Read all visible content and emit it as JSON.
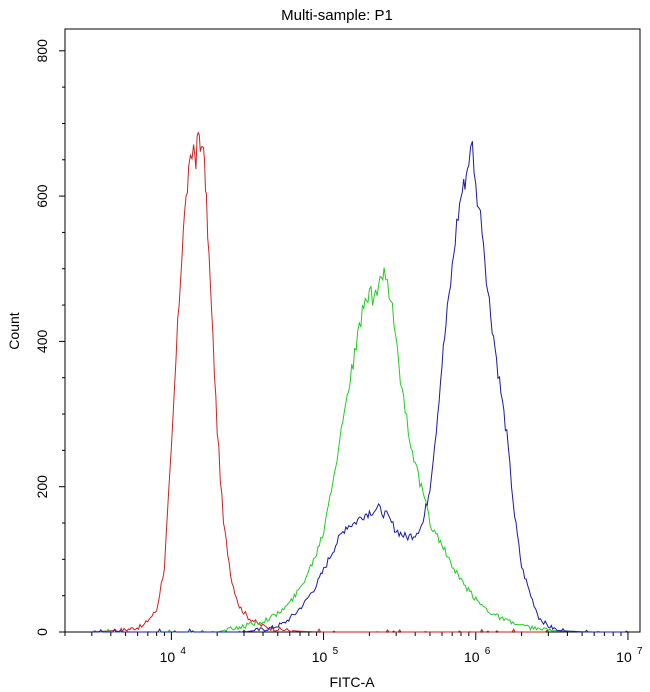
{
  "chart_data": {
    "type": "line",
    "title": "Multi-sample: P1",
    "xlabel": "FITC-A",
    "ylabel": "Count",
    "x_scale": "log",
    "xlim": [
      2000,
      12000000
    ],
    "ylim": [
      0,
      830
    ],
    "x_ticks": [
      {
        "value": 10000,
        "base": "10",
        "exp": "4"
      },
      {
        "value": 100000,
        "base": "10",
        "exp": "5"
      },
      {
        "value": 1000000,
        "base": "10",
        "exp": "6"
      },
      {
        "value": 10000000,
        "base": "10",
        "exp": "7"
      }
    ],
    "y_ticks": [
      {
        "value": 0,
        "label": "0"
      },
      {
        "value": 200,
        "label": "200"
      },
      {
        "value": 400,
        "label": "400"
      },
      {
        "value": 600,
        "label": "600"
      },
      {
        "value": 800,
        "label": "800"
      }
    ],
    "grid": false,
    "legend": "none",
    "series": [
      {
        "color": "#cc2222",
        "x": [
          3000,
          5000,
          6500,
          8000,
          9000,
          10000,
          11000,
          12000,
          13000,
          14000,
          14500,
          15000,
          15500,
          16000,
          16500,
          17000,
          18000,
          20000,
          22000,
          25000,
          28000,
          32000,
          38000,
          45000,
          55000,
          70000,
          100000,
          200000,
          500000,
          1000000,
          3000000
        ],
        "y": [
          0,
          3,
          8,
          30,
          90,
          250,
          420,
          560,
          630,
          670,
          650,
          690,
          660,
          680,
          640,
          590,
          480,
          280,
          150,
          70,
          35,
          20,
          10,
          5,
          3,
          1,
          0,
          0,
          0,
          0,
          0
        ]
      },
      {
        "color": "#22cc22",
        "x": [
          3000,
          20000,
          30000,
          40000,
          50000,
          60000,
          70000,
          80000,
          90000,
          100000,
          110000,
          125000,
          140000,
          160000,
          180000,
          200000,
          215000,
          230000,
          250000,
          270000,
          290000,
          320000,
          360000,
          400000,
          450000,
          500000,
          600000,
          700000,
          800000,
          1000000,
          1200000,
          1500000,
          2000000,
          3000000,
          6000000
        ],
        "y": [
          0,
          0,
          8,
          15,
          25,
          40,
          60,
          85,
          110,
          140,
          190,
          250,
          320,
          380,
          440,
          470,
          450,
          480,
          495,
          460,
          430,
          350,
          280,
          230,
          190,
          150,
          120,
          90,
          70,
          45,
          30,
          18,
          8,
          2,
          0
        ]
      },
      {
        "color": "#1a1aa0",
        "x": [
          3000,
          30000,
          45000,
          55000,
          65000,
          75000,
          90000,
          100000,
          120000,
          140000,
          160000,
          180000,
          200000,
          230000,
          260000,
          300000,
          350000,
          400000,
          450000,
          500000,
          550000,
          600000,
          650000,
          700000,
          750000,
          800000,
          850000,
          900000,
          950000,
          1000000,
          1100000,
          1200000,
          1400000,
          1600000,
          1800000,
          2000000,
          2300000,
          2600000,
          3000000,
          3500000,
          5000000,
          10000000
        ],
        "y": [
          0,
          0,
          5,
          12,
          25,
          40,
          65,
          85,
          120,
          145,
          150,
          160,
          165,
          170,
          160,
          140,
          130,
          135,
          150,
          200,
          280,
          370,
          440,
          500,
          560,
          600,
          620,
          650,
          670,
          610,
          560,
          470,
          360,
          270,
          160,
          90,
          50,
          20,
          8,
          2,
          0,
          0
        ]
      }
    ]
  }
}
